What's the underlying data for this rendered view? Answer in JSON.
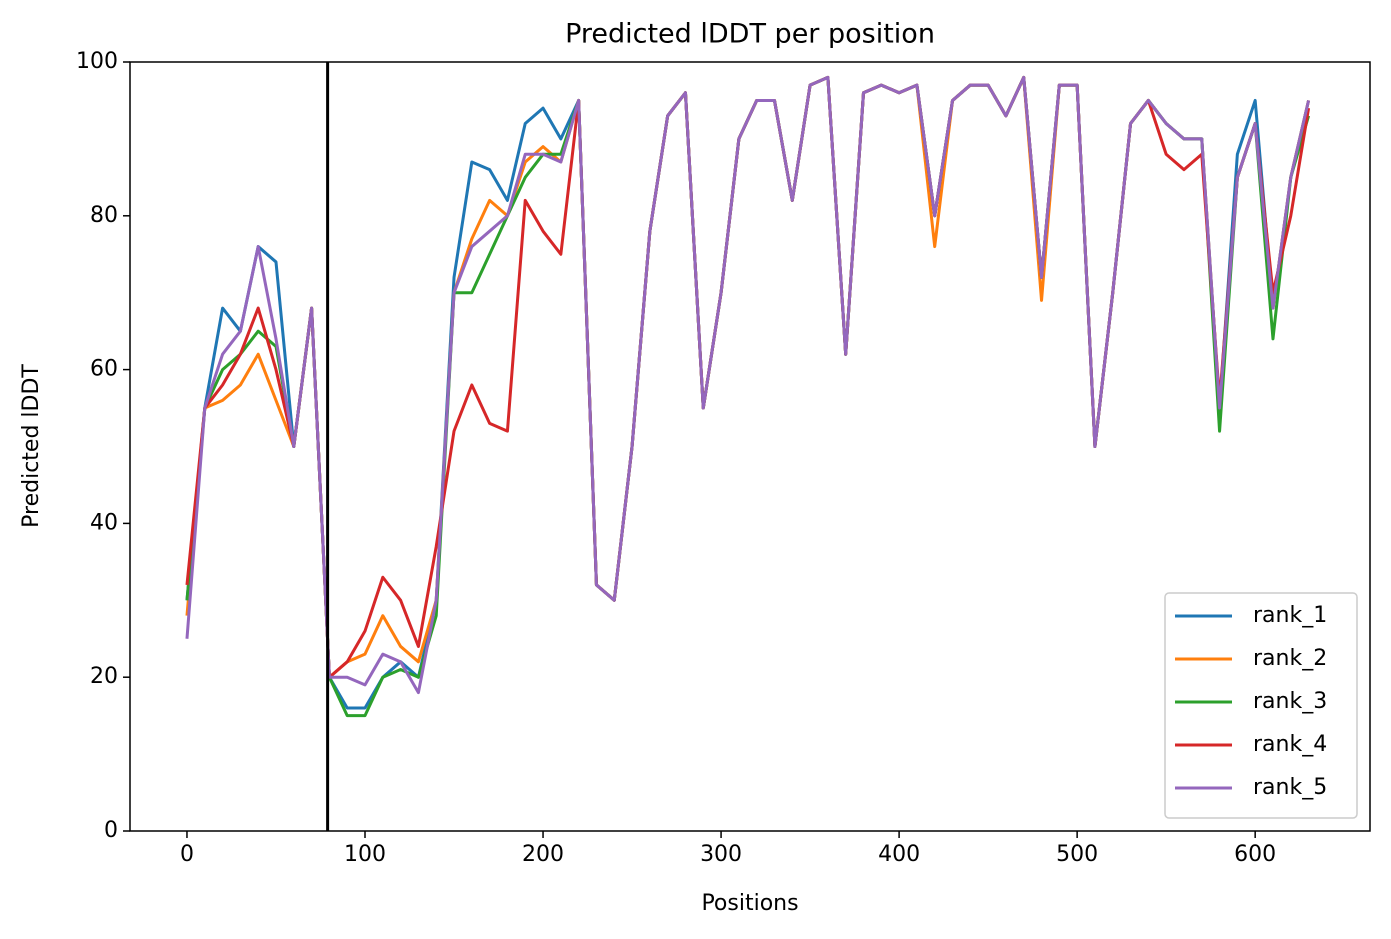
{
  "chart_data": {
    "type": "line",
    "title": "Predicted lDDT per position",
    "xlabel": "Positions",
    "ylabel": "Predicted lDDT",
    "x": [
      0,
      10,
      20,
      30,
      40,
      50,
      60,
      70,
      80,
      90,
      100,
      110,
      120,
      130,
      140,
      150,
      160,
      170,
      180,
      190,
      200,
      210,
      220,
      230,
      240,
      250,
      260,
      270,
      280,
      290,
      300,
      310,
      320,
      330,
      340,
      350,
      360,
      370,
      380,
      390,
      400,
      410,
      420,
      430,
      440,
      450,
      460,
      470,
      480,
      490,
      500,
      510,
      520,
      530,
      540,
      550,
      560,
      570,
      580,
      590,
      600,
      610,
      620,
      630
    ],
    "series": [
      {
        "name": "rank_1",
        "color": "#1f77b4",
        "values": [
          30,
          55,
          68,
          65,
          76,
          74,
          50,
          68,
          20,
          16,
          16,
          20,
          22,
          20,
          30,
          72,
          87,
          86,
          82,
          92,
          94,
          90,
          95,
          32,
          30,
          50,
          78,
          93,
          96,
          55,
          70,
          90,
          95,
          95,
          82,
          97,
          98,
          62,
          96,
          97,
          96,
          97,
          80,
          95,
          97,
          97,
          93,
          98,
          72,
          97,
          97,
          50,
          70,
          92,
          95,
          92,
          90,
          90,
          55,
          88,
          95,
          68,
          85,
          95
        ]
      },
      {
        "name": "rank_2",
        "color": "#ff7f0e",
        "values": [
          28,
          55,
          56,
          58,
          62,
          56,
          50,
          68,
          20,
          22,
          23,
          28,
          24,
          22,
          30,
          70,
          77,
          82,
          80,
          87,
          89,
          87,
          95,
          32,
          30,
          50,
          78,
          93,
          96,
          55,
          70,
          90,
          95,
          95,
          82,
          97,
          98,
          62,
          96,
          97,
          96,
          97,
          76,
          95,
          97,
          97,
          93,
          98,
          69,
          97,
          97,
          50,
          70,
          92,
          95,
          92,
          90,
          90,
          55,
          85,
          92,
          68,
          85,
          95
        ]
      },
      {
        "name": "rank_3",
        "color": "#2ca02c",
        "values": [
          30,
          55,
          60,
          62,
          65,
          63,
          50,
          68,
          20,
          15,
          15,
          20,
          21,
          20,
          28,
          70,
          70,
          75,
          80,
          85,
          88,
          88,
          95,
          32,
          30,
          50,
          78,
          93,
          96,
          55,
          70,
          90,
          95,
          95,
          82,
          97,
          98,
          62,
          96,
          97,
          96,
          97,
          80,
          95,
          97,
          97,
          93,
          98,
          72,
          97,
          97,
          50,
          70,
          92,
          95,
          92,
          90,
          90,
          52,
          85,
          92,
          64,
          85,
          93
        ]
      },
      {
        "name": "rank_4",
        "color": "#d62728",
        "values": [
          32,
          55,
          58,
          62,
          68,
          60,
          50,
          68,
          20,
          22,
          26,
          33,
          30,
          24,
          37,
          52,
          58,
          53,
          52,
          82,
          78,
          75,
          95,
          32,
          30,
          50,
          78,
          93,
          96,
          55,
          70,
          90,
          95,
          95,
          82,
          97,
          98,
          62,
          96,
          97,
          96,
          97,
          80,
          95,
          97,
          97,
          93,
          98,
          72,
          97,
          97,
          50,
          70,
          92,
          95,
          88,
          86,
          88,
          56,
          85,
          92,
          70,
          80,
          94
        ]
      },
      {
        "name": "rank_5",
        "color": "#9467bd",
        "values": [
          25,
          55,
          62,
          65,
          76,
          64,
          50,
          68,
          20,
          20,
          19,
          23,
          22,
          18,
          30,
          70,
          76,
          78,
          80,
          88,
          88,
          87,
          95,
          32,
          30,
          50,
          78,
          93,
          96,
          55,
          70,
          90,
          95,
          95,
          82,
          97,
          98,
          62,
          96,
          97,
          96,
          97,
          80,
          95,
          97,
          97,
          93,
          98,
          72,
          97,
          97,
          50,
          70,
          92,
          95,
          92,
          90,
          90,
          55,
          85,
          92,
          68,
          85,
          95
        ]
      }
    ],
    "vline": 79,
    "xlim": [
      -32,
      664.5
    ],
    "xticks": [
      0,
      100,
      200,
      300,
      400,
      500,
      600
    ],
    "ylim": [
      0,
      100
    ],
    "yticks": [
      0,
      20,
      40,
      60,
      80,
      100
    ],
    "grid": false,
    "legend": "lower right"
  }
}
